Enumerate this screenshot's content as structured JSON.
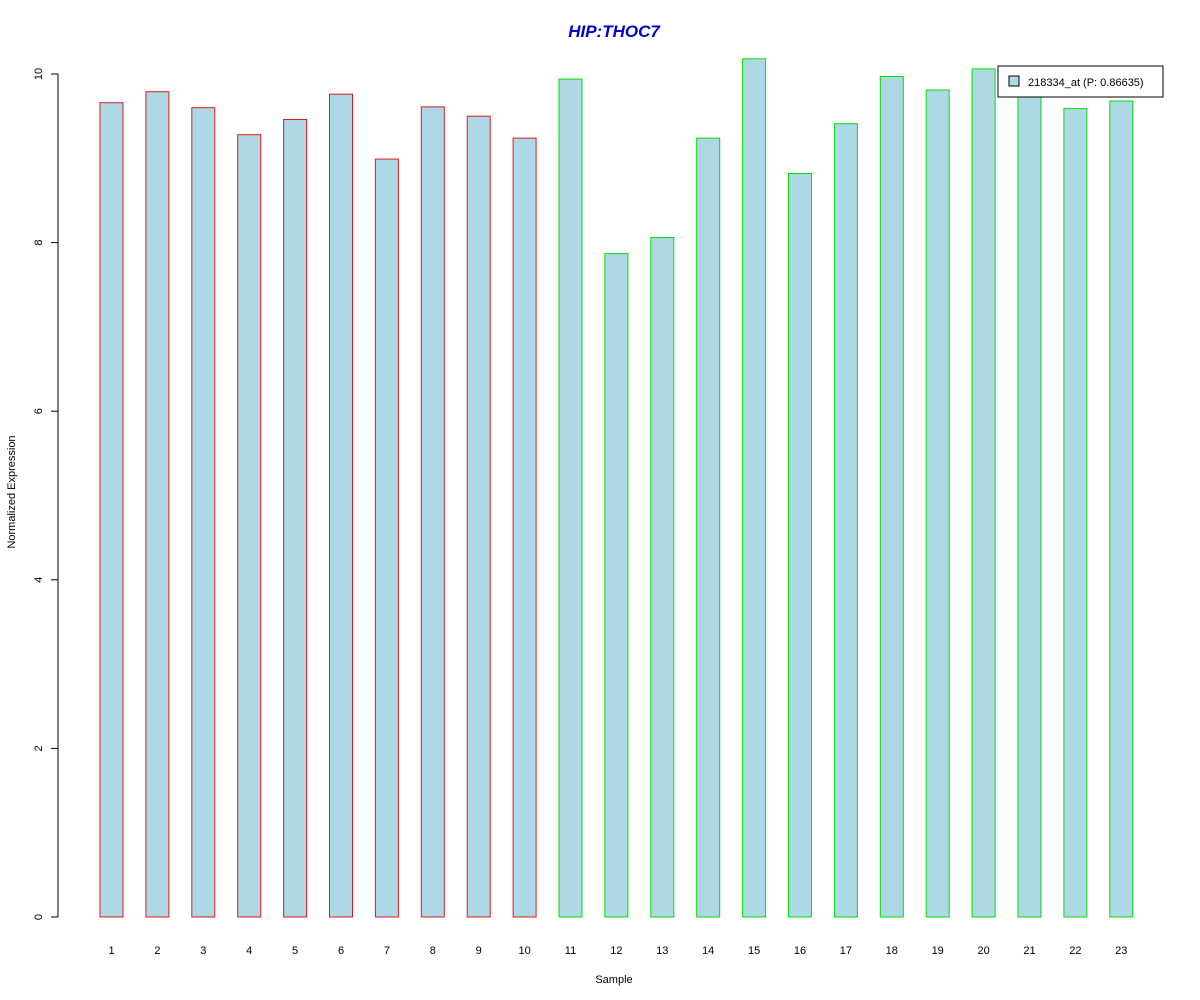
{
  "chart_data": {
    "type": "bar",
    "title": "HIP:THOC7",
    "xlabel": "Sample",
    "ylabel": "Normalized Expression",
    "categories": [
      "1",
      "2",
      "3",
      "4",
      "5",
      "6",
      "7",
      "8",
      "9",
      "10",
      "11",
      "12",
      "13",
      "14",
      "15",
      "16",
      "17",
      "18",
      "19",
      "20",
      "21",
      "22",
      "23"
    ],
    "series": [
      {
        "name": "218334_at (P: 0.86635)",
        "values": [
          9.66,
          9.79,
          9.6,
          9.28,
          9.46,
          9.76,
          8.99,
          9.61,
          9.5,
          9.24,
          9.94,
          7.87,
          8.06,
          9.24,
          10.18,
          8.82,
          9.41,
          9.97,
          9.81,
          10.06,
          9.73,
          9.59,
          9.68
        ]
      }
    ],
    "groups": [
      {
        "samples": [
          "1",
          "2",
          "3",
          "4",
          "5",
          "6",
          "7",
          "8",
          "9",
          "10"
        ],
        "border_color": "#e31a1c"
      },
      {
        "samples": [
          "11",
          "12",
          "13",
          "14",
          "15",
          "16",
          "17",
          "18",
          "19",
          "20",
          "21",
          "22",
          "23"
        ],
        "border_color": "#00e000"
      }
    ],
    "bar_fill": "#add8e6",
    "title_color": "#0000cc",
    "ylim": [
      0,
      10
    ],
    "yticks": [
      0,
      2,
      4,
      6,
      8,
      10
    ],
    "grid": false,
    "legend_position": "top-right"
  }
}
